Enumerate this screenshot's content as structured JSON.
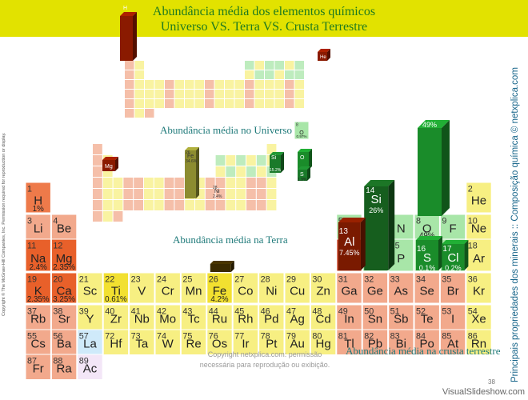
{
  "header": {
    "title_line1": "Abundância média dos elementos químicos",
    "title_line2": "Universo VS. Terra VS. Crusta Terrestre"
  },
  "captions": {
    "universe": "Abundância média no Universo",
    "earth": "Abundância média na Terra",
    "crust": "Abundância média na crusta terrestre"
  },
  "side_label": "Principais propriedades dos minerais :: Composição química © netxplica.com",
  "left_copyright": "Copyright © The McGraw-Hill Companies, Inc. Permission required for reproduction or display.",
  "footer": {
    "copyright_line1": "Copyright netxplica.com: permissão",
    "copyright_line2": "necessária para reprodução ou exibição.",
    "page_number": "38",
    "watermark": "VisualSlideshow.com"
  },
  "colors": {
    "header_bg": "#e2e200",
    "title_text": "#1f7a1f",
    "caption_text": "#1f7a7a",
    "metal": "#f7ef82",
    "nonmetal": "#a8e6a8",
    "alkali": "#f08a60",
    "metalloid": "#f2a98c",
    "accent_bar": "#8a1a00",
    "green_bar": "#1a8c2a"
  },
  "crust_table": {
    "row1": [
      {
        "num": "1",
        "sym": "H",
        "pct": "1%"
      },
      {
        "num": "2",
        "sym": "He"
      }
    ],
    "row2": [
      {
        "num": "3",
        "sym": "Li"
      },
      {
        "num": "4",
        "sym": "Be"
      },
      {
        "num": "5",
        "sym": "B"
      },
      {
        "num": "7",
        "sym": "N"
      },
      {
        "num": "8",
        "sym": "O",
        "pct": "49%"
      },
      {
        "num": "9",
        "sym": "F"
      },
      {
        "num": "10",
        "sym": "Ne"
      }
    ],
    "row3": [
      {
        "num": "11",
        "sym": "Na",
        "pct": "2.4%"
      },
      {
        "num": "12",
        "sym": "Mg",
        "pct": "2.35%"
      },
      {
        "num": "13",
        "sym": "Al",
        "pct": "7.45%"
      },
      {
        "num": "14",
        "sym": "Si",
        "pct": "26%"
      },
      {
        "num": "15",
        "sym": "P"
      },
      {
        "num": "16",
        "sym": "S",
        "pct": "0.1%"
      },
      {
        "num": "17",
        "sym": "Cl",
        "pct": "0.2%"
      },
      {
        "num": "18",
        "sym": "Ar"
      }
    ],
    "row4": [
      {
        "num": "19",
        "sym": "K",
        "pct": "2.35%"
      },
      {
        "num": "20",
        "sym": "Ca",
        "pct": "3.25%"
      },
      {
        "num": "21",
        "sym": "Sc"
      },
      {
        "num": "22",
        "sym": "Ti",
        "pct": "0.61%"
      },
      {
        "num": "23",
        "sym": "V"
      },
      {
        "num": "24",
        "sym": "Cr"
      },
      {
        "num": "25",
        "sym": "Mn"
      },
      {
        "num": "26",
        "sym": "Fe",
        "pct": "4.2%"
      },
      {
        "num": "27",
        "sym": "Co"
      },
      {
        "num": "28",
        "sym": "Ni"
      },
      {
        "num": "29",
        "sym": "Cu"
      },
      {
        "num": "30",
        "sym": "Zn"
      },
      {
        "num": "31",
        "sym": "Ga"
      },
      {
        "num": "32",
        "sym": "Ge"
      },
      {
        "num": "33",
        "sym": "As"
      },
      {
        "num": "34",
        "sym": "Se"
      },
      {
        "num": "35",
        "sym": "Br"
      },
      {
        "num": "36",
        "sym": "Kr"
      }
    ],
    "row5": [
      {
        "num": "37",
        "sym": "Rb"
      },
      {
        "num": "38",
        "sym": "Sr"
      },
      {
        "num": "39",
        "sym": "Y"
      },
      {
        "num": "40",
        "sym": "Zr"
      },
      {
        "num": "41",
        "sym": "Nb"
      },
      {
        "num": "42",
        "sym": "Mo"
      },
      {
        "num": "43",
        "sym": "Tc"
      },
      {
        "num": "44",
        "sym": "Ru"
      },
      {
        "num": "45",
        "sym": "Rh"
      },
      {
        "num": "46",
        "sym": "Pd"
      },
      {
        "num": "47",
        "sym": "Ag"
      },
      {
        "num": "48",
        "sym": "Cd"
      },
      {
        "num": "49",
        "sym": "In"
      },
      {
        "num": "50",
        "sym": "Sn"
      },
      {
        "num": "51",
        "sym": "Sb"
      },
      {
        "num": "52",
        "sym": "Te"
      },
      {
        "num": "53",
        "sym": "I"
      },
      {
        "num": "54",
        "sym": "Xe"
      }
    ],
    "row6": [
      {
        "num": "55",
        "sym": "Cs"
      },
      {
        "num": "56",
        "sym": "Ba"
      },
      {
        "num": "57",
        "sym": "La"
      },
      {
        "num": "72",
        "sym": "Hf"
      },
      {
        "num": "73",
        "sym": "Ta"
      },
      {
        "num": "74",
        "sym": "W"
      },
      {
        "num": "75",
        "sym": "Re"
      },
      {
        "num": "76",
        "sym": "Os"
      },
      {
        "num": "77",
        "sym": "Ir"
      },
      {
        "num": "78",
        "sym": "Pt"
      },
      {
        "num": "79",
        "sym": "Au"
      },
      {
        "num": "80",
        "sym": "Hg"
      },
      {
        "num": "81",
        "sym": "Tl"
      },
      {
        "num": "82",
        "sym": "Pb"
      },
      {
        "num": "83",
        "sym": "Bi"
      },
      {
        "num": "84",
        "sym": "Po"
      },
      {
        "num": "85",
        "sym": "At"
      },
      {
        "num": "86",
        "sym": "Rn"
      }
    ],
    "row7": [
      {
        "num": "87",
        "sym": "Fr"
      },
      {
        "num": "88",
        "sym": "Ra"
      },
      {
        "num": "89",
        "sym": "Ac"
      }
    ]
  },
  "earth_table": {
    "labels": [
      {
        "num": "26",
        "sym": "Fe",
        "pct": "34.6%"
      },
      {
        "num": "12",
        "sym": "Mg"
      },
      {
        "num": "28",
        "sym": "Ni",
        "pct": "2.4%"
      },
      {
        "num": "14",
        "sym": "Si",
        "pct": "15.2%"
      },
      {
        "num": "8",
        "sym": "O"
      },
      {
        "num": "16",
        "sym": "S",
        "pct": "1.9%"
      }
    ]
  },
  "universe_table": {
    "labels": [
      {
        "num": "1",
        "sym": "H"
      },
      {
        "num": "2",
        "sym": "He"
      },
      {
        "num": "8",
        "sym": "O",
        "pct": "0.97%"
      }
    ]
  }
}
